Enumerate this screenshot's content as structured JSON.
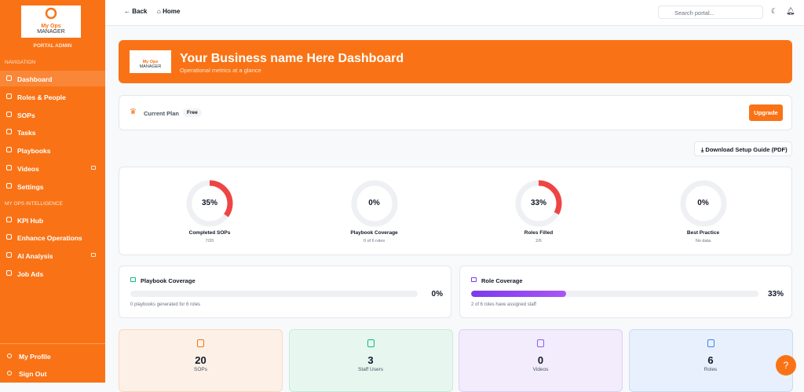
{
  "sidebar": {
    "logo": {
      "line1": "My Ops",
      "line2": "MANAGER"
    },
    "role": "PORTAL ADMIN",
    "sections": [
      {
        "title": "NAVIGATION",
        "items": [
          {
            "label": "Dashboard",
            "active": true
          },
          {
            "label": "Roles & People"
          },
          {
            "label": "SOPs"
          },
          {
            "label": "Tasks"
          },
          {
            "label": "Playbooks"
          },
          {
            "label": "Videos",
            "locked": true
          },
          {
            "label": "Settings"
          }
        ]
      },
      {
        "title": "MY OPS INTELLIGENCE",
        "items": [
          {
            "label": "KPI Hub"
          },
          {
            "label": "Enhance Operations"
          },
          {
            "label": "AI Analysis",
            "locked": true
          },
          {
            "label": "Job Ads"
          }
        ]
      }
    ],
    "footer": [
      "My Profile",
      "Sign Out"
    ]
  },
  "topbar": {
    "back": "Back",
    "home": "Home",
    "search_placeholder": "Search portal..."
  },
  "banner": {
    "logo": {
      "line1": "My Ops",
      "line2": "MANAGER"
    },
    "title": "Your Business name Here Dashboard",
    "subtitle": "Operational metrics at a glance"
  },
  "plan": {
    "label": "Current Plan",
    "badge": "Free",
    "button": "Upgrade"
  },
  "download": "Download Setup Guide (PDF)",
  "gauges": [
    {
      "value": 35,
      "value_label": "35%",
      "title": "Completed SOPs",
      "detail": "7/20"
    },
    {
      "value": 0,
      "value_label": "0%",
      "title": "Playbook Coverage",
      "detail": "0 of 6 roles"
    },
    {
      "value": 33,
      "value_label": "33%",
      "title": "Roles Filled",
      "detail": "2/6"
    },
    {
      "value": 0,
      "value_label": "0%",
      "title": "Best Practice",
      "detail": "No data"
    }
  ],
  "coverage": [
    {
      "title": "Playbook Coverage",
      "value": 0,
      "value_label": "0%",
      "detail": "0 playbooks generated for 6 roles",
      "color": "#10b981"
    },
    {
      "title": "Role Coverage",
      "value": 33,
      "value_label": "33%",
      "detail": "2 of 6 roles have assigned staff",
      "color": "#7c3aed"
    }
  ],
  "stats": [
    {
      "value": 20,
      "label": "SOPs",
      "color": "#f97316",
      "bg": "#fdf0e6",
      "border": "#f8d9c2"
    },
    {
      "value": 3,
      "label": "Staff Users",
      "color": "#10b981",
      "bg": "#e7f7f0",
      "border": "#c5ebd9"
    },
    {
      "value": 0,
      "label": "Videos",
      "color": "#8b5cf6",
      "bg": "#f2ecfc",
      "border": "#ddd0f7"
    },
    {
      "value": 6,
      "label": "Roles",
      "color": "#3b82f6",
      "bg": "#e7f0fc",
      "border": "#c9dcf5"
    }
  ]
}
